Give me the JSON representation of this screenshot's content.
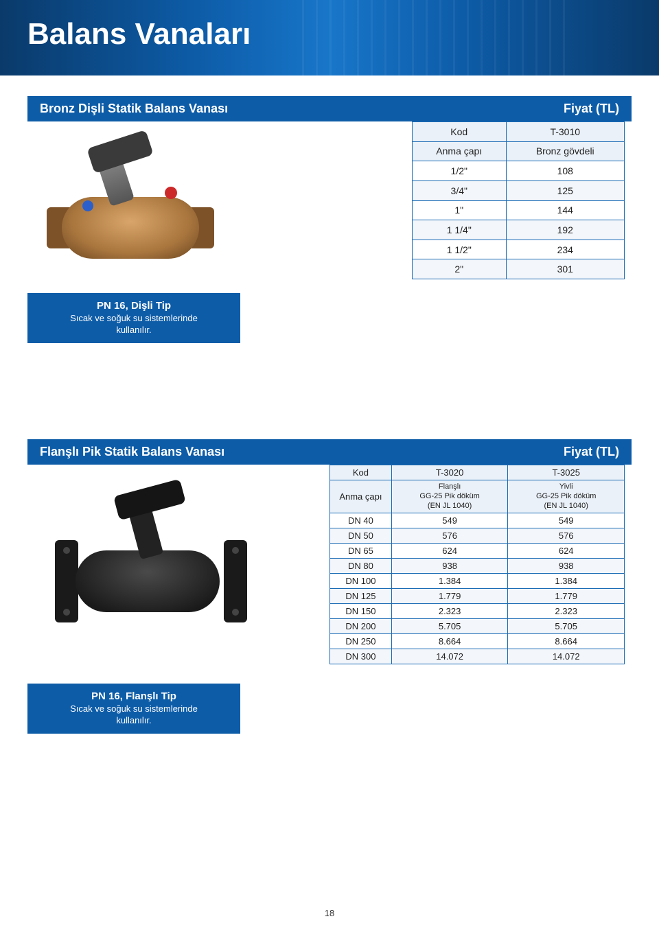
{
  "header": {
    "title": "Balans Vanaları"
  },
  "section1": {
    "title": "Bronz Dişli Statik Balans Vanası",
    "price_label": "Fiyat (TL)",
    "table": {
      "head_col0": "Kod",
      "head_col1": "T-3010",
      "sub_col0": "Anma çapı",
      "sub_col1": "Bronz gövdeli",
      "rows": [
        {
          "c0": "1/2\"",
          "c1": "108"
        },
        {
          "c0": "3/4\"",
          "c1": "125"
        },
        {
          "c0": "1\"",
          "c1": "144"
        },
        {
          "c0": "1  1/4\"",
          "c1": "192"
        },
        {
          "c0": "1  1/2\"",
          "c1": "234"
        },
        {
          "c0": "2\"",
          "c1": "301"
        }
      ]
    },
    "desc": {
      "hdr": "PN 16, Dişli Tip",
      "l1": "Sıcak ve soğuk su sistemlerinde",
      "l2": "kullanılır."
    }
  },
  "section2": {
    "title": "Flanşlı Pik Statik Balans Vanası",
    "price_label": "Fiyat (TL)",
    "table": {
      "head_col0": "Kod",
      "head_col1": "T-3020",
      "head_col2": "T-3025",
      "sub_col0": "Anma çapı",
      "sub_col1_l1": "Flanşlı",
      "sub_col1_l2": "GG-25 Pik döküm",
      "sub_col1_l3": "(EN JL 1040)",
      "sub_col2_l1": "Yivli",
      "sub_col2_l2": "GG-25 Pik döküm",
      "sub_col2_l3": "(EN JL 1040)",
      "rows": [
        {
          "c0": "DN 40",
          "c1": "549",
          "c2": "549"
        },
        {
          "c0": "DN 50",
          "c1": "576",
          "c2": "576"
        },
        {
          "c0": "DN 65",
          "c1": "624",
          "c2": "624"
        },
        {
          "c0": "DN 80",
          "c1": "938",
          "c2": "938"
        },
        {
          "c0": "DN 100",
          "c1": "1.384",
          "c2": "1.384"
        },
        {
          "c0": "DN 125",
          "c1": "1.779",
          "c2": "1.779"
        },
        {
          "c0": "DN 150",
          "c1": "2.323",
          "c2": "2.323"
        },
        {
          "c0": "DN 200",
          "c1": "5.705",
          "c2": "5.705"
        },
        {
          "c0": "DN 250",
          "c1": "8.664",
          "c2": "8.664"
        },
        {
          "c0": "DN 300",
          "c1": "14.072",
          "c2": "14.072"
        }
      ]
    },
    "desc": {
      "hdr": "PN 16, Flanşlı Tip",
      "l1": "Sıcak ve soğuk su sistemlerinde",
      "l2": "kullanılır."
    }
  },
  "page": {
    "num": "18"
  },
  "colors": {
    "bar_bg": "#0d5ca8",
    "table_border": "#1a6bb5",
    "row_alt": "#f3f6fa",
    "head_bg": "#eaf1f8"
  }
}
